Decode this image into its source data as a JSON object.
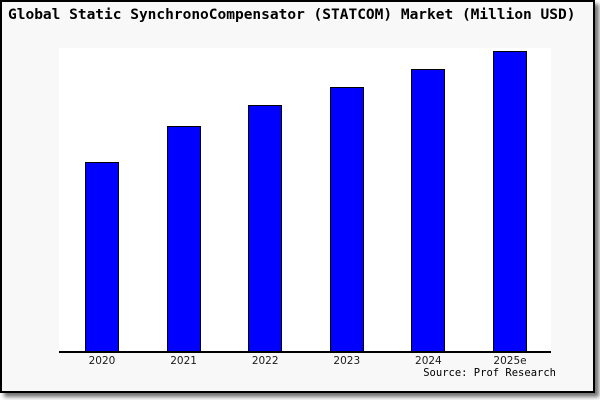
{
  "title": "Global Static SynchronoCompensator (STATCOM) Market (Million USD)",
  "source_label": "Source: Prof Research",
  "colors": {
    "bar_fill": "#0000ff",
    "bar_border": "#000000",
    "axis": "#000000",
    "frame_border": "#000000",
    "frame_background": "#f8f8f8",
    "plot_background": "#ffffff",
    "title_text": "#000000",
    "tick_text": "#1a1a1a"
  },
  "chart_data": {
    "type": "bar",
    "title": "Global Static SynchronoCompensator (STATCOM) Market (Million USD)",
    "categories": [
      "2020",
      "2021",
      "2022",
      "2023",
      "2024",
      "2025e"
    ],
    "values": [
      63,
      75,
      82,
      88,
      94,
      100
    ],
    "value_scale_note": "no y-axis or value labels shown; values estimated relative to tallest bar (2025e = 100)",
    "xlabel": "",
    "ylabel": "",
    "ylim": [
      0,
      101
    ],
    "grid": false,
    "legend": false,
    "y_axis_ticks": "none",
    "source": "Source: Prof Research"
  }
}
